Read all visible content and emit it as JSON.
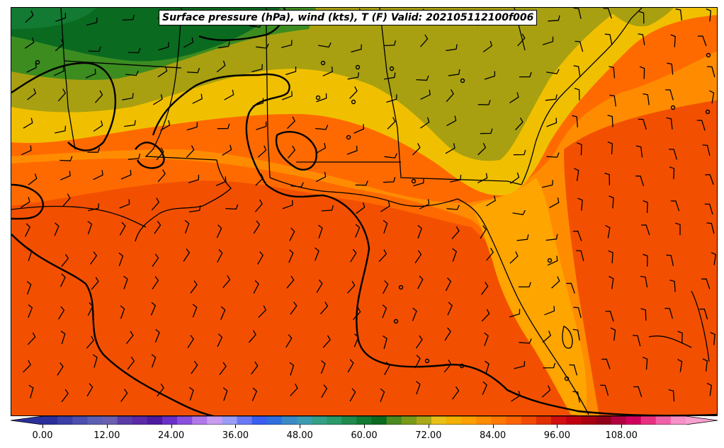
{
  "title": "Surface pressure (hPa), wind (kts), T (F) Valid: 202105112100f006",
  "colorbar": {
    "ticks": [
      "0.00",
      "12.00",
      "24.00",
      "36.00",
      "48.00",
      "60.00",
      "72.00",
      "84.00",
      "96.00",
      "108.00"
    ],
    "colors": [
      "#2b2f9c",
      "#3b3fa8",
      "#4c4fb0",
      "#5d5fb4",
      "#6a5fb0",
      "#5a3ca8",
      "#5a2aa8",
      "#4d1aa0",
      "#6a30c8",
      "#8a4fdc",
      "#b078e8",
      "#c89cf0",
      "#9a9cf5",
      "#6a78f5",
      "#3a5ff0",
      "#2f6fe0",
      "#3a8ac8",
      "#3c9cb0",
      "#34a088",
      "#2a9a6a",
      "#1f8a4c",
      "#127a32",
      "#0a6a20",
      "#4a8a20",
      "#7a9a18",
      "#a8a818",
      "#e8c018",
      "#f2b000",
      "#ffa000",
      "#ff8c00",
      "#ff7800",
      "#ff6400",
      "#f24a00",
      "#e03000",
      "#d01010",
      "#c00010",
      "#a80010",
      "#900018",
      "#b00040",
      "#d00060",
      "#e83080",
      "#f060a8",
      "#f890c8"
    ]
  },
  "legend_arrows": {
    "left": "#2b2f9c",
    "right": "#f9a0d0"
  },
  "layers": {
    "temperature": "filled contours",
    "pressure": "black isobars",
    "wind": "wind barbs (kts)",
    "boundaries": "state and coastline outlines"
  },
  "colors": {
    "gulf_deep": "#f25000",
    "gulf_mid": "#ff6a00",
    "coast_orange": "#ff8c00",
    "florida_orange": "#ffa500",
    "yellow": "#f0c000",
    "olive": "#a8a010",
    "green_mid": "#3c8c20",
    "green_dark": "#0a6a20",
    "green_teal": "#127a32"
  }
}
